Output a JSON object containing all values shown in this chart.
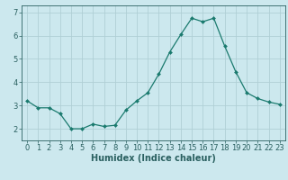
{
  "x": [
    0,
    1,
    2,
    3,
    4,
    5,
    6,
    7,
    8,
    9,
    10,
    11,
    12,
    13,
    14,
    15,
    16,
    17,
    18,
    19,
    20,
    21,
    22,
    23
  ],
  "y": [
    3.2,
    2.9,
    2.9,
    2.65,
    2.0,
    2.0,
    2.2,
    2.1,
    2.15,
    2.8,
    3.2,
    3.55,
    4.35,
    5.3,
    6.05,
    6.75,
    6.6,
    6.75,
    5.55,
    4.45,
    3.55,
    3.3,
    3.15,
    3.05
  ],
  "line_color": "#1a7a6e",
  "marker": "D",
  "marker_size": 2.0,
  "bg_color": "#cce8ee",
  "grid_color": "#b0cfd5",
  "axis_color": "#2a6060",
  "xlabel": "Humidex (Indice chaleur)",
  "xlabel_fontsize": 7,
  "tick_fontsize": 6,
  "ylim": [
    1.5,
    7.3
  ],
  "xlim": [
    -0.5,
    23.5
  ],
  "yticks": [
    2,
    3,
    4,
    5,
    6,
    7
  ],
  "xticks": [
    0,
    1,
    2,
    3,
    4,
    5,
    6,
    7,
    8,
    9,
    10,
    11,
    12,
    13,
    14,
    15,
    16,
    17,
    18,
    19,
    20,
    21,
    22,
    23
  ]
}
